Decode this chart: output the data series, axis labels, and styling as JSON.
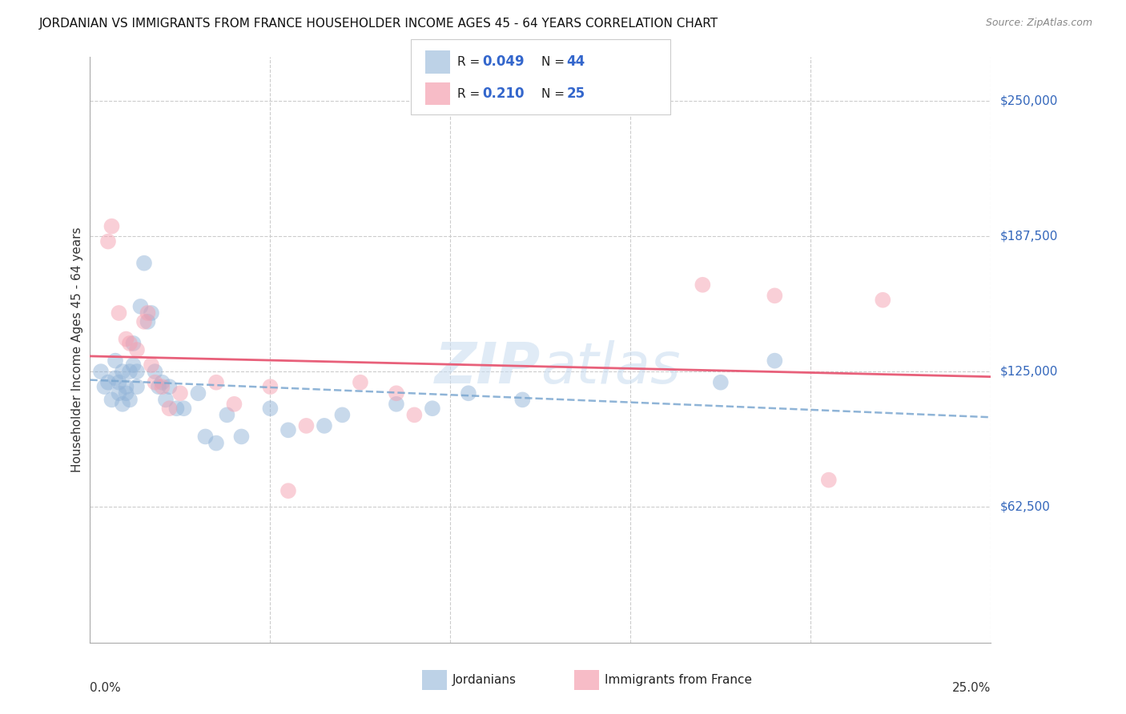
{
  "title": "JORDANIAN VS IMMIGRANTS FROM FRANCE HOUSEHOLDER INCOME AGES 45 - 64 YEARS CORRELATION CHART",
  "source": "Source: ZipAtlas.com",
  "ylabel": "Householder Income Ages 45 - 64 years",
  "yticks": [
    62500,
    125000,
    187500,
    250000
  ],
  "ytick_labels": [
    "$62,500",
    "$125,000",
    "$187,500",
    "$250,000"
  ],
  "blue_color": "#92B4D8",
  "pink_color": "#F5A0B0",
  "trendline_blue": "#7BA7D0",
  "trendline_pink": "#E8607A",
  "jordanians_x": [
    0.3,
    0.4,
    0.5,
    0.6,
    0.7,
    0.7,
    0.8,
    0.8,
    0.9,
    0.9,
    1.0,
    1.0,
    1.1,
    1.1,
    1.2,
    1.2,
    1.3,
    1.3,
    1.4,
    1.5,
    1.6,
    1.7,
    1.8,
    1.9,
    2.0,
    2.1,
    2.2,
    2.4,
    2.6,
    3.0,
    3.2,
    3.5,
    3.8,
    4.2,
    5.0,
    5.5,
    6.5,
    7.0,
    8.5,
    9.5,
    10.5,
    12.0,
    17.5,
    19.0
  ],
  "jordanians_y": [
    125000,
    118000,
    120000,
    112000,
    130000,
    122000,
    120000,
    115000,
    125000,
    110000,
    118000,
    115000,
    125000,
    112000,
    138000,
    128000,
    125000,
    118000,
    155000,
    175000,
    148000,
    152000,
    125000,
    118000,
    120000,
    112000,
    118000,
    108000,
    108000,
    115000,
    95000,
    92000,
    105000,
    95000,
    108000,
    98000,
    100000,
    105000,
    110000,
    108000,
    115000,
    112000,
    120000,
    130000
  ],
  "france_x": [
    0.5,
    0.6,
    0.8,
    1.0,
    1.1,
    1.3,
    1.5,
    1.6,
    1.7,
    1.8,
    2.0,
    2.2,
    2.5,
    3.5,
    4.0,
    5.0,
    5.5,
    6.0,
    7.5,
    8.5,
    9.0,
    17.0,
    19.0,
    20.5,
    22.0
  ],
  "france_y": [
    185000,
    192000,
    152000,
    140000,
    138000,
    135000,
    148000,
    152000,
    128000,
    120000,
    118000,
    108000,
    115000,
    120000,
    110000,
    118000,
    70000,
    100000,
    120000,
    115000,
    105000,
    165000,
    160000,
    75000,
    158000
  ],
  "x_min": 0.0,
  "x_max": 25.0,
  "y_min": 0,
  "y_max": 270000
}
